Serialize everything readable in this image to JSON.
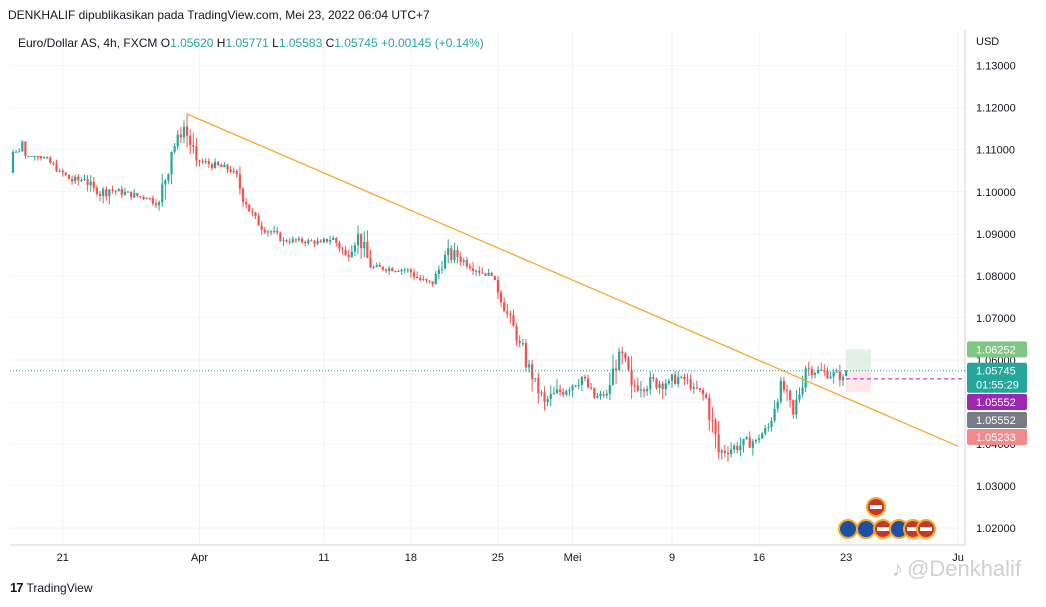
{
  "header": {
    "publication": "DENKHALIF dipublikasikan pada TradingView.com, Mei 23, 2022 06:04 UTC+7"
  },
  "symbol_line": {
    "name": "Euro/Dollar AS, 4h, FXCM",
    "o_label": "O",
    "o_value": "1.05620",
    "h_label": "H",
    "h_value": "1.05771",
    "l_label": "L",
    "l_value": "1.05583",
    "c_label": "C",
    "c_value": "1.05745",
    "change": "+0.00145 (+0.14%)"
  },
  "footer": {
    "brand": "TradingView",
    "watermark": "@Denkhalif"
  },
  "colors": {
    "up": "#26a69a",
    "down": "#ef5350",
    "trendline": "#f7a82b",
    "last_price": "#26a69a",
    "purple": "#9c27b0",
    "gray": "#787b86",
    "target_green": "#81c784",
    "stop_red": "#f28b8b"
  },
  "chart_data": {
    "type": "candlestick",
    "currency_label": "USD",
    "y_ticks": [
      "1.13000",
      "1.12000",
      "1.11000",
      "1.10000",
      "1.09000",
      "1.08000",
      "1.07000",
      "1.06000",
      "1.05000",
      "1.04000",
      "1.03000",
      "1.02000"
    ],
    "ylim": [
      1.016,
      1.138
    ],
    "x_labels": [
      "21",
      "Apr",
      "11",
      "18",
      "25",
      "Mei",
      "9",
      "16",
      "23",
      "Ju"
    ],
    "x_tick_dates": [
      "2022-03-21",
      "2022-04-01",
      "2022-04-11",
      "2022-04-18",
      "2022-04-25",
      "2022-05-01",
      "2022-05-09",
      "2022-05-16",
      "2022-05-23",
      "2022-06-01"
    ],
    "grid": true,
    "trendline": {
      "start": [
        "2022-03-31",
        1.1185
      ],
      "end": [
        "2022-06-01",
        1.0395
      ]
    },
    "price_labels": [
      {
        "value": "1.06252",
        "role": "target"
      },
      {
        "value": "1.05745",
        "role": "last"
      },
      {
        "value": "01:55:29",
        "role": "countdown"
      },
      {
        "value": "1.05552",
        "role": "purple"
      },
      {
        "value": "1.05552",
        "role": "gray"
      },
      {
        "value": "1.05233",
        "role": "stop"
      }
    ],
    "position_box": {
      "start": "2022-05-23",
      "end": "2022-05-25",
      "entry": 1.05745,
      "target": 1.06252,
      "stop": 1.05233
    },
    "event_icons": [
      "EU",
      "EU",
      "US",
      "EU",
      "US",
      "US",
      "US"
    ],
    "series": [
      {
        "points": [
          [
            "2022-03-17",
            1.1045,
            1.113,
            1.1095,
            1.112
          ],
          [
            "2022-03-18",
            1.112,
            1.1085,
            1.104,
            1.105
          ],
          [
            "2022-03-21",
            1.105,
            1.106,
            1.101,
            1.1025
          ],
          [
            "2022-03-22",
            1.1025,
            1.105,
            1.099,
            1.103
          ],
          [
            "2022-03-23",
            1.103,
            1.104,
            1.097,
            1.0995
          ],
          [
            "2022-03-24",
            1.0995,
            1.1025,
            1.095,
            1.1005
          ],
          [
            "2022-03-25",
            1.1005,
            1.1025,
            1.098,
            1.0985
          ],
          [
            "2022-03-28",
            1.0985,
            1.1,
            1.0945,
            1.0975
          ],
          [
            "2022-03-29",
            1.0975,
            1.112,
            1.096,
            1.1095
          ],
          [
            "2022-03-30",
            1.1095,
            1.117,
            1.109,
            1.1155
          ],
          [
            "2022-03-31",
            1.1155,
            1.1185,
            1.106,
            1.1075
          ],
          [
            "2022-04-01",
            1.1075,
            1.108,
            1.103,
            1.105
          ],
          [
            "2022-04-04",
            1.105,
            1.106,
            1.096,
            1.097
          ],
          [
            "2022-04-05",
            1.097,
            1.098,
            1.091,
            1.092
          ],
          [
            "2022-04-06",
            1.092,
            1.0935,
            1.088,
            1.0905
          ],
          [
            "2022-04-07",
            1.0905,
            1.092,
            1.087,
            1.0885
          ],
          [
            "2022-04-08",
            1.0885,
            1.0895,
            1.086,
            1.088
          ],
          [
            "2022-04-11",
            1.088,
            1.091,
            1.087,
            1.089
          ],
          [
            "2022-04-12",
            1.089,
            1.0905,
            1.083,
            1.085
          ],
          [
            "2022-04-13",
            1.085,
            1.092,
            1.082,
            1.09
          ],
          [
            "2022-04-14",
            1.09,
            1.092,
            1.08,
            1.082
          ],
          [
            "2022-04-15",
            1.082,
            1.084,
            1.08,
            1.0815
          ],
          [
            "2022-04-18",
            1.0815,
            1.083,
            1.077,
            1.079
          ],
          [
            "2022-04-19",
            1.079,
            1.081,
            1.076,
            1.078
          ],
          [
            "2022-04-20",
            1.078,
            1.086,
            1.077,
            1.085
          ],
          [
            "2022-04-21",
            1.085,
            1.0935,
            1.083,
            1.0845
          ],
          [
            "2022-04-22",
            1.0845,
            1.086,
            1.08,
            1.079
          ],
          [
            "2022-04-25",
            1.079,
            1.08,
            1.07,
            1.071
          ],
          [
            "2022-04-26",
            1.071,
            1.072,
            1.063,
            1.064
          ],
          [
            "2022-04-27",
            1.064,
            1.065,
            1.052,
            1.0555
          ],
          [
            "2022-04-28",
            1.0555,
            1.057,
            1.047,
            1.05
          ],
          [
            "2022-04-29",
            1.05,
            1.059,
            1.049,
            1.056
          ],
          [
            "2022-05-02",
            1.056,
            1.0565,
            1.049,
            1.051
          ],
          [
            "2022-05-03",
            1.051,
            1.054,
            1.05,
            1.052
          ],
          [
            "2022-05-04",
            1.052,
            1.064,
            1.0505,
            1.062
          ],
          [
            "2022-05-05",
            1.062,
            1.064,
            1.048,
            1.054
          ],
          [
            "2022-05-06",
            1.054,
            1.06,
            1.05,
            1.055
          ],
          [
            "2022-05-09",
            1.055,
            1.059,
            1.051,
            1.056
          ],
          [
            "2022-05-10",
            1.056,
            1.059,
            1.052,
            1.0535
          ],
          [
            "2022-05-11",
            1.0535,
            1.057,
            1.05,
            1.051
          ],
          [
            "2022-05-12",
            1.051,
            1.052,
            1.036,
            1.038
          ],
          [
            "2022-05-13",
            1.038,
            1.043,
            1.035,
            1.041
          ],
          [
            "2022-05-16",
            1.041,
            1.045,
            1.039,
            1.044
          ],
          [
            "2022-05-17",
            1.044,
            1.056,
            1.043,
            1.055
          ],
          [
            "2022-05-18",
            1.055,
            1.056,
            1.046,
            1.047
          ],
          [
            "2022-05-19",
            1.047,
            1.059,
            1.046,
            1.058
          ],
          [
            "2022-05-20",
            1.058,
            1.06,
            1.053,
            1.056
          ],
          [
            "2022-05-23",
            1.0562,
            1.0577,
            1.0558,
            1.0575
          ]
        ]
      }
    ]
  }
}
